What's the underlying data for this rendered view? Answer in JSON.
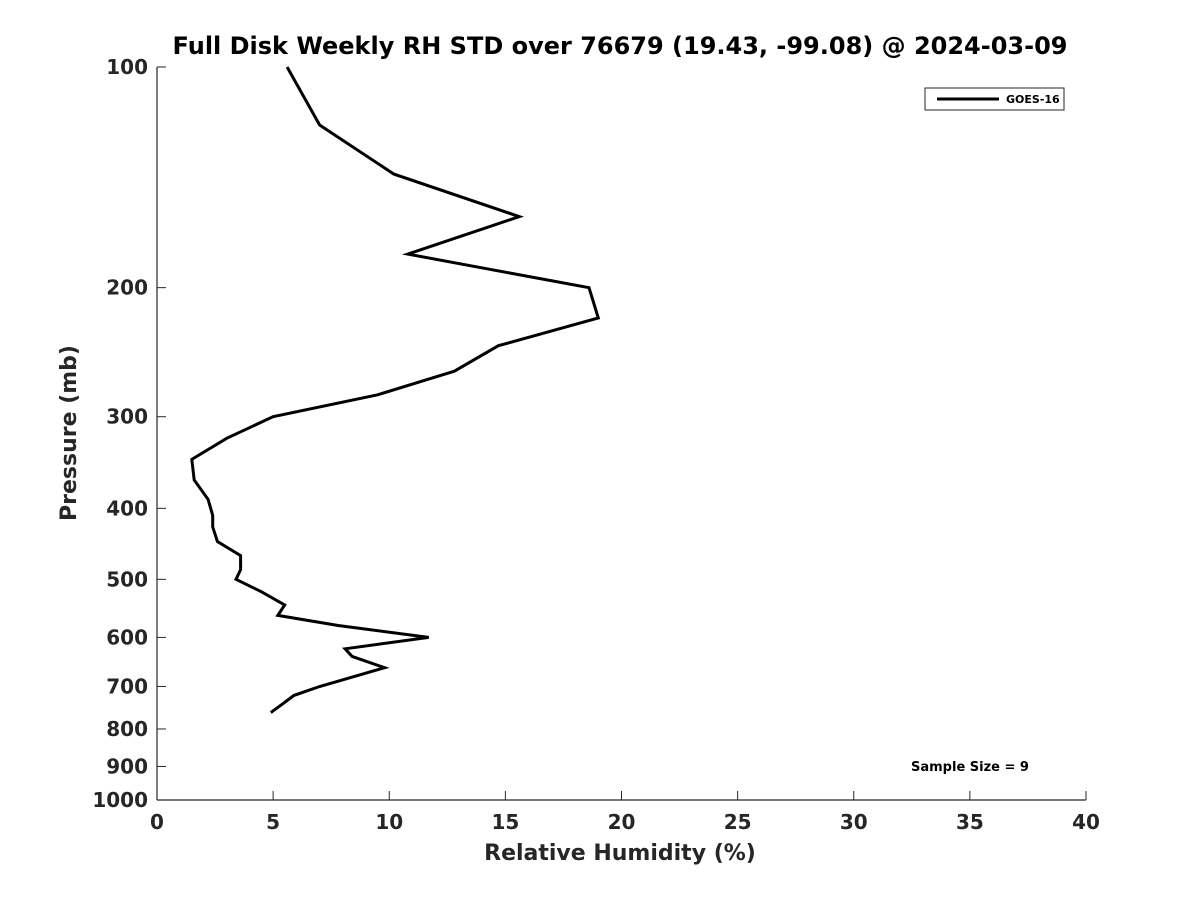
{
  "chart_data": {
    "type": "line",
    "title": "Full Disk Weekly RH STD over 76679 (19.43, -99.08) @ 2024-03-09",
    "xlabel": "Relative Humidity (%)",
    "ylabel": "Pressure (mb)",
    "xlim": [
      0,
      40
    ],
    "ylim": [
      100,
      1000
    ],
    "yscale": "log",
    "y_inverted": true,
    "grid": false,
    "legend_position": "top-right",
    "x_ticks": [
      0,
      5,
      10,
      15,
      20,
      25,
      30,
      35,
      40
    ],
    "x_tick_labels": [
      "0",
      "5",
      "10",
      "15",
      "20",
      "25",
      "30",
      "35",
      "40"
    ],
    "y_ticks": [
      100,
      200,
      300,
      400,
      500,
      600,
      700,
      800,
      900,
      1000
    ],
    "y_tick_labels": [
      "100",
      "200",
      "300",
      "400",
      "500",
      "600",
      "700",
      "800",
      "900",
      "1000"
    ],
    "series": [
      {
        "name": "GOES-16",
        "color": "#000000",
        "points": [
          {
            "x": 5.6,
            "p": 100
          },
          {
            "x": 7.0,
            "p": 120
          },
          {
            "x": 10.2,
            "p": 140
          },
          {
            "x": 15.6,
            "p": 160
          },
          {
            "x": 10.8,
            "p": 180
          },
          {
            "x": 18.6,
            "p": 200
          },
          {
            "x": 19.0,
            "p": 220
          },
          {
            "x": 14.7,
            "p": 240
          },
          {
            "x": 12.8,
            "p": 260
          },
          {
            "x": 9.5,
            "p": 280
          },
          {
            "x": 5.0,
            "p": 300
          },
          {
            "x": 3.0,
            "p": 321
          },
          {
            "x": 1.5,
            "p": 343
          },
          {
            "x": 1.6,
            "p": 366
          },
          {
            "x": 2.2,
            "p": 389
          },
          {
            "x": 2.4,
            "p": 409
          },
          {
            "x": 2.4,
            "p": 424
          },
          {
            "x": 2.6,
            "p": 444
          },
          {
            "x": 3.6,
            "p": 464
          },
          {
            "x": 3.6,
            "p": 485
          },
          {
            "x": 3.4,
            "p": 500
          },
          {
            "x": 4.5,
            "p": 520
          },
          {
            "x": 5.5,
            "p": 542
          },
          {
            "x": 5.2,
            "p": 560
          },
          {
            "x": 7.8,
            "p": 578
          },
          {
            "x": 11.7,
            "p": 600
          },
          {
            "x": 8.1,
            "p": 622
          },
          {
            "x": 8.4,
            "p": 637
          },
          {
            "x": 9.8,
            "p": 660
          },
          {
            "x": 7.0,
            "p": 700
          },
          {
            "x": 5.9,
            "p": 720
          },
          {
            "x": 5.4,
            "p": 740
          },
          {
            "x": 4.9,
            "p": 760
          }
        ]
      }
    ],
    "annotations": [
      {
        "text": "Sample Size = 9",
        "position": "bottom-right"
      }
    ]
  }
}
